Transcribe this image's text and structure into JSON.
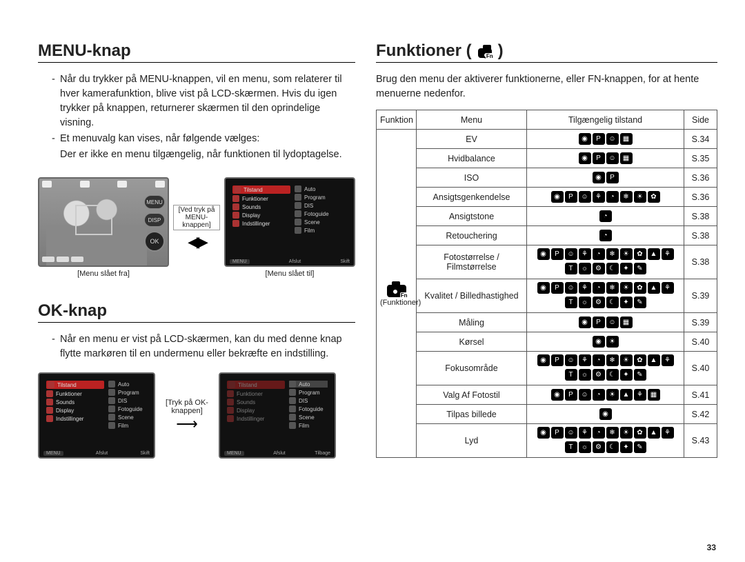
{
  "page_number": "33",
  "left": {
    "menu_knap": {
      "title": "MENU-knap",
      "p1": "Når du trykker på MENU-knappen, vil en menu, som relaterer til hver kamerafunktion, blive vist på LCD-skærmen. Hvis du igen trykker på knappen, returnerer skærmen til den oprindelige visning.",
      "p2": "Et menuvalg kan vises, når følgende vælges:",
      "p3": "Der er ikke en menu tilgængelig, når funktionen til lydoptagelse.",
      "cap_off": "[Menu slået fra]",
      "cap_on": "[Menu slået til]",
      "mid_label": "[Ved tryk på MENU-knappen]",
      "btn_menu": "MENU",
      "btn_disp": "DISP",
      "btn_ok": "OK"
    },
    "ok_knap": {
      "title": "OK-knap",
      "p1": "Når en menu er vist på LCD-skærmen, kan du med denne knap flytte markøren til en undermenu eller bekræfte en indstilling.",
      "cap": "[Tryk på OK-knappen]"
    },
    "menu_items": [
      "Tilstand",
      "Funktioner",
      "Sounds",
      "Display",
      "Indstillinger"
    ],
    "sub_items": [
      "Auto",
      "Program",
      "DIS",
      "Fotoguide",
      "Scene",
      "Film"
    ],
    "foot_left": "Afslut",
    "foot_right_skift": "Skift",
    "foot_right_tilbage": "Tilbage",
    "foot_menu": "MENU"
  },
  "right": {
    "title": "Funktioner (",
    "title_suffix": ")",
    "fn_badge": "Fn",
    "intro": "Brug den menu der aktiverer funktionerne, eller FN-knappen, for at hente menuerne nedenfor.",
    "head": {
      "fn": "Funktion",
      "menu": "Menu",
      "avail": "Tilgængelig tilstand",
      "side": "Side"
    },
    "fn_cell": "(Funktioner)",
    "rows": [
      {
        "menu": "EV",
        "icons": [
          "◉",
          "P",
          "☺",
          "▦"
        ],
        "side": "S.34"
      },
      {
        "menu": "Hvidbalance",
        "icons": [
          "◉",
          "P",
          "☺",
          "▦"
        ],
        "side": "S.35"
      },
      {
        "menu": "ISO",
        "icons": [
          "◉",
          "P"
        ],
        "side": "S.36"
      },
      {
        "menu": "Ansigtsgenkendelse",
        "icons": [
          "◉",
          "P",
          "☺",
          "⚘",
          "◔",
          "❄",
          "☀",
          "✿"
        ],
        "side": "S.36"
      },
      {
        "menu": "Ansigtstone",
        "icons": [
          "◔"
        ],
        "side": "S.38"
      },
      {
        "menu": "Retouchering",
        "icons": [
          "◔"
        ],
        "side": "S.38"
      },
      {
        "menu": "Fotostørrelse / Filmstørrelse",
        "icons": [
          "◉",
          "P",
          "☺",
          "⚘",
          "◔",
          "❄",
          "☀",
          "✿",
          "▲",
          "⚘",
          "T",
          "☼",
          "⚙",
          "☾",
          "✦",
          "✎"
        ],
        "side": "S.38",
        "tall": true
      },
      {
        "menu": "Kvalitet / Billedhastighed",
        "icons": [
          "◉",
          "P",
          "☺",
          "⚘",
          "◔",
          "❄",
          "☀",
          "✿",
          "▲",
          "⚘",
          "T",
          "☼",
          "⚙",
          "☾",
          "✦",
          "✎"
        ],
        "side": "S.39",
        "tall": true
      },
      {
        "menu": "Måling",
        "icons": [
          "◉",
          "P",
          "☺",
          "▦"
        ],
        "side": "S.39"
      },
      {
        "menu": "Kørsel",
        "icons": [
          "◉",
          "☀"
        ],
        "side": "S.40"
      },
      {
        "menu": "Fokusområde",
        "icons": [
          "◉",
          "P",
          "☺",
          "⚘",
          "◔",
          "❄",
          "☀",
          "✿",
          "▲",
          "⚘",
          "T",
          "☼",
          "⚙",
          "☾",
          "✦",
          "✎"
        ],
        "side": "S.40",
        "tall": true
      },
      {
        "menu": "Valg Af Fotostil",
        "icons": [
          "◉",
          "P",
          "☺",
          "◔",
          "☀",
          "▲",
          "⚘",
          "▦"
        ],
        "side": "S.41"
      },
      {
        "menu": "Tilpas billede",
        "icons": [
          "◉"
        ],
        "side": "S.42"
      },
      {
        "menu": "Lyd",
        "icons": [
          "◉",
          "P",
          "☺",
          "⚘",
          "◔",
          "❄",
          "☀",
          "✿",
          "▲",
          "⚘",
          "T",
          "☼",
          "⚙",
          "☾",
          "✦",
          "✎"
        ],
        "side": "S.43",
        "tall": true
      }
    ]
  },
  "style": {
    "text_color": "#222",
    "rule_color": "#000",
    "table_border": "#555",
    "icon_bg": "#000",
    "icon_fg": "#fff",
    "menu_sel": "#b22",
    "body_fontsize": 14.5,
    "title_fontsize": 24
  }
}
